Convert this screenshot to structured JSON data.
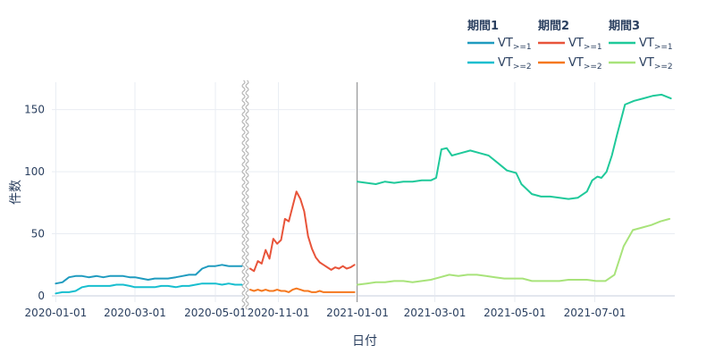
{
  "chart_data": {
    "type": "line",
    "xlabel": "日付",
    "ylabel": "件数",
    "ylim": [
      -5,
      172
    ],
    "y_ticks": [
      0,
      50,
      100,
      150
    ],
    "grid": true,
    "legend_position": "top-right",
    "legend_groups": [
      "期間1",
      "期間2",
      "期間3"
    ],
    "panels": [
      {
        "name": "期間1",
        "x_range": [
          "2019-12-29",
          "2020-05-22"
        ],
        "x_ticks": [
          "2020-01-01",
          "2020-03-01",
          "2020-05-01"
        ],
        "series": [
          {
            "group": "期間1",
            "label_main": "VT",
            "label_sub": ">=1",
            "color": "#1f9bbf",
            "x": [
              "2020-01-01",
              "2020-01-06",
              "2020-01-11",
              "2020-01-16",
              "2020-01-21",
              "2020-01-26",
              "2020-02-01",
              "2020-02-06",
              "2020-02-11",
              "2020-02-16",
              "2020-02-21",
              "2020-02-26",
              "2020-03-01",
              "2020-03-06",
              "2020-03-11",
              "2020-03-16",
              "2020-03-21",
              "2020-03-26",
              "2020-04-01",
              "2020-04-06",
              "2020-04-11",
              "2020-04-16",
              "2020-04-21",
              "2020-04-26",
              "2020-05-01",
              "2020-05-06",
              "2020-05-11",
              "2020-05-16",
              "2020-05-21"
            ],
            "y": [
              10,
              11,
              15,
              16,
              16,
              15,
              16,
              15,
              16,
              16,
              16,
              15,
              15,
              14,
              13,
              14,
              14,
              14,
              15,
              16,
              17,
              17,
              22,
              24,
              24,
              25,
              24,
              24,
              24
            ]
          },
          {
            "group": "期間1",
            "label_main": "VT",
            "label_sub": ">=2",
            "color": "#17becf",
            "x": [
              "2020-01-01",
              "2020-01-06",
              "2020-01-11",
              "2020-01-16",
              "2020-01-21",
              "2020-01-26",
              "2020-02-01",
              "2020-02-06",
              "2020-02-11",
              "2020-02-16",
              "2020-02-21",
              "2020-02-26",
              "2020-03-01",
              "2020-03-06",
              "2020-03-11",
              "2020-03-16",
              "2020-03-21",
              "2020-03-26",
              "2020-04-01",
              "2020-04-06",
              "2020-04-11",
              "2020-04-16",
              "2020-04-21",
              "2020-04-26",
              "2020-05-01",
              "2020-05-06",
              "2020-05-11",
              "2020-05-16",
              "2020-05-21"
            ],
            "y": [
              2,
              3,
              3,
              4,
              7,
              8,
              8,
              8,
              8,
              9,
              9,
              8,
              7,
              7,
              7,
              7,
              8,
              8,
              7,
              8,
              8,
              9,
              10,
              10,
              10,
              9,
              10,
              9,
              9
            ]
          }
        ]
      },
      {
        "name": "期間2",
        "x_range": [
          "2020-10-08",
          "2020-12-31"
        ],
        "x_ticks": [
          "2020-11-01"
        ],
        "series": [
          {
            "group": "期間2",
            "label_main": "VT",
            "label_sub": ">=1",
            "color": "#e8543a",
            "x": [
              "2020-10-10",
              "2020-10-13",
              "2020-10-16",
              "2020-10-19",
              "2020-10-22",
              "2020-10-25",
              "2020-10-28",
              "2020-10-31",
              "2020-11-03",
              "2020-11-06",
              "2020-11-09",
              "2020-11-12",
              "2020-11-15",
              "2020-11-18",
              "2020-11-21",
              "2020-11-24",
              "2020-11-27",
              "2020-11-30",
              "2020-12-03",
              "2020-12-06",
              "2020-12-09",
              "2020-12-12",
              "2020-12-15",
              "2020-12-18",
              "2020-12-21",
              "2020-12-24",
              "2020-12-27",
              "2020-12-30"
            ],
            "y": [
              22,
              20,
              28,
              26,
              37,
              30,
              46,
              42,
              45,
              62,
              60,
              72,
              84,
              78,
              68,
              48,
              38,
              31,
              27,
              25,
              23,
              21,
              23,
              22,
              24,
              22,
              23,
              25
            ]
          },
          {
            "group": "期間2",
            "label_main": "VT",
            "label_sub": ">=2",
            "color": "#f5781f",
            "x": [
              "2020-10-10",
              "2020-10-13",
              "2020-10-16",
              "2020-10-19",
              "2020-10-22",
              "2020-10-25",
              "2020-10-28",
              "2020-10-31",
              "2020-11-03",
              "2020-11-06",
              "2020-11-09",
              "2020-11-12",
              "2020-11-15",
              "2020-11-18",
              "2020-11-21",
              "2020-11-24",
              "2020-11-27",
              "2020-11-30",
              "2020-12-03",
              "2020-12-06",
              "2020-12-09",
              "2020-12-12",
              "2020-12-15",
              "2020-12-18",
              "2020-12-21",
              "2020-12-24",
              "2020-12-27",
              "2020-12-30"
            ],
            "y": [
              5,
              4,
              5,
              4,
              5,
              4,
              4,
              5,
              4,
              4,
              3,
              5,
              6,
              5,
              4,
              4,
              3,
              3,
              4,
              3,
              3,
              3,
              3,
              3,
              3,
              3,
              3,
              3
            ]
          }
        ]
      },
      {
        "name": "期間3",
        "x_range": [
          "2021-01-01",
          "2021-08-31"
        ],
        "x_ticks": [
          "2021-01-01",
          "2021-03-01",
          "2021-05-01",
          "2021-07-01"
        ],
        "series": [
          {
            "group": "期間3",
            "label_main": "VT",
            "label_sub": ">=1",
            "color": "#1fc99a",
            "x": [
              "2021-01-01",
              "2021-01-08",
              "2021-01-15",
              "2021-01-22",
              "2021-01-29",
              "2021-02-05",
              "2021-02-12",
              "2021-02-19",
              "2021-02-26",
              "2021-03-02",
              "2021-03-06",
              "2021-03-10",
              "2021-03-14",
              "2021-03-21",
              "2021-03-28",
              "2021-04-04",
              "2021-04-11",
              "2021-04-18",
              "2021-04-25",
              "2021-05-02",
              "2021-05-06",
              "2021-05-10",
              "2021-05-14",
              "2021-05-21",
              "2021-05-28",
              "2021-06-04",
              "2021-06-11",
              "2021-06-18",
              "2021-06-25",
              "2021-06-29",
              "2021-07-03",
              "2021-07-06",
              "2021-07-10",
              "2021-07-14",
              "2021-07-18",
              "2021-07-24",
              "2021-07-31",
              "2021-08-07",
              "2021-08-14",
              "2021-08-21",
              "2021-08-28"
            ],
            "y": [
              92,
              91,
              90,
              92,
              91,
              92,
              92,
              93,
              93,
              95,
              118,
              119,
              113,
              115,
              117,
              115,
              113,
              107,
              101,
              99,
              90,
              86,
              82,
              80,
              80,
              79,
              78,
              79,
              84,
              93,
              96,
              95,
              100,
              113,
              130,
              154,
              157,
              159,
              161,
              162,
              159
            ]
          },
          {
            "group": "期間3",
            "label_main": "VT",
            "label_sub": ">=2",
            "color": "#a8e37a",
            "x": [
              "2021-01-01",
              "2021-01-08",
              "2021-01-15",
              "2021-01-22",
              "2021-01-29",
              "2021-02-05",
              "2021-02-12",
              "2021-02-19",
              "2021-02-26",
              "2021-03-05",
              "2021-03-12",
              "2021-03-19",
              "2021-03-26",
              "2021-04-02",
              "2021-04-09",
              "2021-04-16",
              "2021-04-23",
              "2021-04-30",
              "2021-05-07",
              "2021-05-14",
              "2021-05-21",
              "2021-05-28",
              "2021-06-04",
              "2021-06-11",
              "2021-06-18",
              "2021-06-25",
              "2021-07-02",
              "2021-07-09",
              "2021-07-16",
              "2021-07-23",
              "2021-07-30",
              "2021-08-06",
              "2021-08-13",
              "2021-08-20",
              "2021-08-27"
            ],
            "y": [
              9,
              10,
              11,
              11,
              12,
              12,
              11,
              12,
              13,
              15,
              17,
              16,
              17,
              17,
              16,
              15,
              14,
              14,
              14,
              12,
              12,
              12,
              12,
              13,
              13,
              13,
              12,
              12,
              17,
              40,
              53,
              55,
              57,
              60,
              62
            ]
          }
        ]
      }
    ]
  }
}
